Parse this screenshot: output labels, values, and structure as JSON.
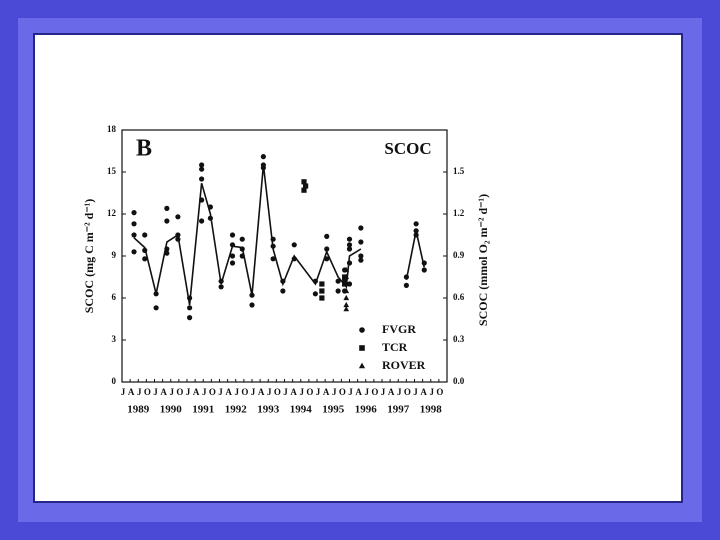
{
  "chart_data": {
    "type": "scatter",
    "panel_label": "B",
    "title": "SCOC",
    "ylabel": "SCOC (mg C m⁻² d⁻¹)",
    "y2label": "SCOC (mmol O₂ m⁻² d⁻¹)",
    "xlim": [
      1989,
      1999
    ],
    "ylim": [
      0,
      18
    ],
    "yticks": [
      0,
      3,
      6,
      9,
      12,
      15,
      18
    ],
    "y2lim": [
      0,
      1.8
    ],
    "y2ticks": [
      {
        "value": 0,
        "label": "0.0"
      },
      0.3,
      0.6,
      0.9,
      1.2,
      1.5
    ],
    "xticks": [
      {
        "value": 1989,
        "label": "J"
      },
      {
        "value": 1989.25,
        "label": "A"
      },
      {
        "value": 1989.5,
        "label": "J"
      },
      {
        "value": 1989.75,
        "label": "O"
      },
      {
        "value": 1990,
        "label": "J"
      },
      {
        "value": 1990.25,
        "label": "A"
      },
      {
        "value": 1990.5,
        "label": "J"
      },
      {
        "value": 1990.75,
        "label": "O"
      },
      {
        "value": 1991,
        "label": "J"
      },
      {
        "value": 1991.25,
        "label": "A"
      },
      {
        "value": 1991.5,
        "label": "J"
      },
      {
        "value": 1991.75,
        "label": "O"
      },
      {
        "value": 1992,
        "label": "J"
      },
      {
        "value": 1992.25,
        "label": "A"
      },
      {
        "value": 1992.5,
        "label": "J"
      },
      {
        "value": 1992.75,
        "label": "O"
      },
      {
        "value": 1993,
        "label": "J"
      },
      {
        "value": 1993.25,
        "label": "A"
      },
      {
        "value": 1993.5,
        "label": "J"
      },
      {
        "value": 1993.75,
        "label": "O"
      },
      {
        "value": 1994,
        "label": "J"
      },
      {
        "value": 1994.25,
        "label": "A"
      },
      {
        "value": 1994.5,
        "label": "J"
      },
      {
        "value": 1994.75,
        "label": "O"
      },
      {
        "value": 1995,
        "label": "J"
      },
      {
        "value": 1995.25,
        "label": "A"
      },
      {
        "value": 1995.5,
        "label": "J"
      },
      {
        "value": 1995.75,
        "label": "O"
      },
      {
        "value": 1996,
        "label": "J"
      },
      {
        "value": 1996.25,
        "label": "A"
      },
      {
        "value": 1996.5,
        "label": "J"
      },
      {
        "value": 1996.75,
        "label": "O"
      },
      {
        "value": 1997,
        "label": "J"
      },
      {
        "value": 1997.25,
        "label": "A"
      },
      {
        "value": 1997.5,
        "label": "J"
      },
      {
        "value": 1997.75,
        "label": "O"
      },
      {
        "value": 1998,
        "label": "J"
      },
      {
        "value": 1998.25,
        "label": "A"
      },
      {
        "value": 1998.5,
        "label": "J"
      },
      {
        "value": 1998.75,
        "label": "O"
      }
    ],
    "year_ticks": [
      {
        "value": 1989.5,
        "label": "1989"
      },
      {
        "value": 1990.5,
        "label": "1990"
      },
      {
        "value": 1991.5,
        "label": "1991"
      },
      {
        "value": 1992.5,
        "label": "1992"
      },
      {
        "value": 1993.5,
        "label": "1993"
      },
      {
        "value": 1994.5,
        "label": "1994"
      },
      {
        "value": 1995.5,
        "label": "1995"
      },
      {
        "value": 1996.5,
        "label": "1996"
      },
      {
        "value": 1997.5,
        "label": "1997"
      },
      {
        "value": 1998.5,
        "label": "1998"
      }
    ],
    "legend": "lower right",
    "series": [
      {
        "name": "FVGR",
        "marker": "circle",
        "color": "#111111",
        "x": [
          1989.37,
          1989.37,
          1989.37,
          1989.37,
          1989.7,
          1989.7,
          1989.7,
          1990.05,
          1990.05,
          1990.38,
          1990.38,
          1990.38,
          1990.38,
          1990.72,
          1990.72,
          1990.72,
          1991.08,
          1991.08,
          1991.08,
          1991.45,
          1991.45,
          1991.45,
          1991.45,
          1991.45,
          1991.72,
          1991.72,
          1992.05,
          1992.05,
          1992.4,
          1992.4,
          1992.4,
          1992.4,
          1992.7,
          1992.7,
          1992.7,
          1993.0,
          1993.0,
          1993.35,
          1993.35,
          1993.35,
          1993.65,
          1993.65,
          1993.65,
          1993.95,
          1993.95,
          1994.3,
          1994.3,
          1994.95,
          1994.95,
          1995.3,
          1995.3,
          1995.3,
          1995.65,
          1995.65,
          1995.85,
          1995.85,
          1995.85,
          1996.0,
          1996.0,
          1996.0,
          1996.0,
          1996.0,
          1996.35,
          1996.35,
          1996.35,
          1996.35,
          1997.75,
          1997.75,
          1998.05,
          1998.05,
          1998.05,
          1998.3,
          1998.3
        ],
        "values": [
          12.1,
          11.3,
          10.5,
          9.3,
          10.5,
          9.4,
          8.8,
          6.3,
          5.3,
          12.4,
          11.5,
          9.5,
          9.2,
          11.8,
          10.5,
          10.2,
          6.0,
          5.3,
          4.6,
          15.5,
          15.2,
          14.5,
          13.0,
          11.5,
          12.5,
          11.7,
          7.2,
          6.8,
          10.5,
          9.8,
          9.0,
          8.5,
          10.2,
          9.5,
          9.0,
          6.2,
          5.5,
          16.1,
          15.5,
          15.3,
          10.2,
          9.7,
          8.8,
          7.2,
          6.5,
          9.8,
          8.8,
          7.2,
          6.3,
          10.4,
          9.5,
          8.8,
          7.2,
          6.5,
          8.0,
          7.3,
          6.5,
          10.2,
          9.8,
          9.5,
          8.5,
          7.0,
          11.0,
          10.0,
          9.0,
          8.7,
          7.5,
          6.9,
          11.3,
          10.8,
          10.5,
          8.5,
          8.0
        ]
      },
      {
        "name": "TCR",
        "marker": "square",
        "color": "#111111",
        "x": [
          1994.6,
          1994.6,
          1994.65,
          1995.15,
          1995.15,
          1995.15,
          1995.85,
          1995.85
        ],
        "values": [
          14.3,
          13.7,
          14.0,
          7.0,
          6.5,
          6.0,
          7.5,
          7.0
        ]
      },
      {
        "name": "ROVER",
        "marker": "triangle",
        "color": "#111111",
        "x": [
          1995.9,
          1995.9,
          1995.9,
          1995.9,
          1995.9,
          1995.9,
          1995.9
        ],
        "values": [
          8.0,
          7.5,
          7.0,
          6.5,
          6.0,
          5.5,
          5.2
        ]
      }
    ],
    "line": {
      "color": "#111111",
      "x": [
        1989.37,
        1989.7,
        1990.05,
        1990.38,
        1990.72,
        1991.08,
        1991.45,
        1991.72,
        1992.05,
        1992.4,
        1992.7,
        1993.0,
        1993.35,
        1993.65,
        1993.95,
        1994.3,
        1994.95,
        1995.3,
        1995.65,
        1995.9,
        1996.0,
        1996.35,
        1997.0,
        1997.75,
        1998.05,
        1998.3
      ],
      "values": [
        10.3,
        9.6,
        6.3,
        10.0,
        10.5,
        5.5,
        14.2,
        12.0,
        7.0,
        9.7,
        9.6,
        6.2,
        15.5,
        9.5,
        7.0,
        9.0,
        7.0,
        9.3,
        7.5,
        6.8,
        9.0,
        9.5,
        null,
        7.3,
        10.8,
        8.2
      ]
    }
  }
}
